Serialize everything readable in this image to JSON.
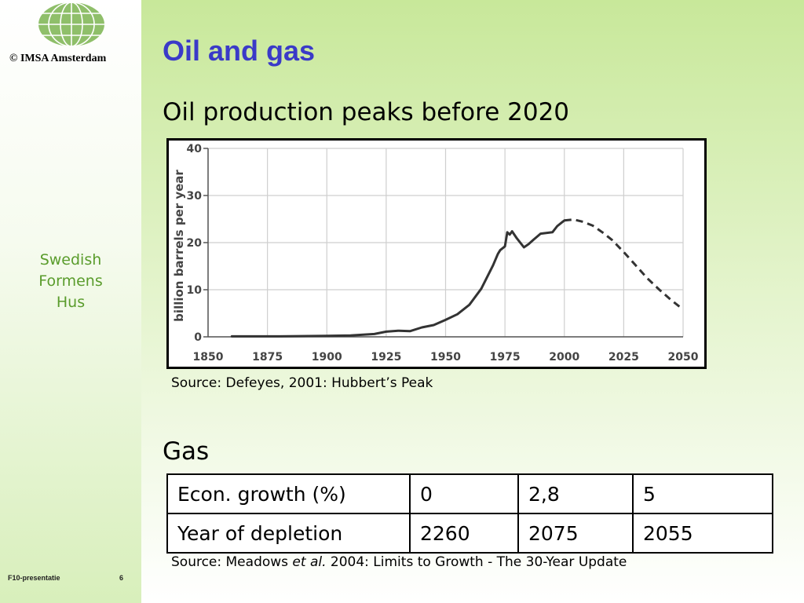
{
  "slide": {
    "title": "Oil and gas",
    "oil_heading": "Oil production peaks before 2020",
    "oil_source": "Source: Defeyes, 2001: Hubbert’s Peak",
    "gas_heading": "Gas",
    "gas_source_prefix": "Source: Meadows ",
    "gas_source_italic": "et al.",
    "gas_source_suffix": " 2004: Limits to Growth - The 30-Year Update"
  },
  "sidebar": {
    "logo_text": "© IMSA Amsterdam",
    "logo_icon": "globe-icon",
    "label_lines": [
      "Swedish",
      "Formens",
      "Hus"
    ],
    "label_color": "#5a9c2c"
  },
  "footer": {
    "left": "F10-presentatie",
    "page": "6"
  },
  "gas_table": {
    "rows": [
      [
        "Econ. growth (%)",
        "0",
        "2,8",
        "5"
      ],
      [
        "Year of depletion",
        "2260",
        "2075",
        "2055"
      ]
    ]
  },
  "colors": {
    "title": "#3a3ac8",
    "background_top": "#c8e89a"
  },
  "chart_data": {
    "type": "line",
    "ylabel": "billion barrels per year",
    "xlim": [
      1850,
      2050
    ],
    "ylim": [
      0,
      40
    ],
    "x_ticks": [
      1850,
      1875,
      1900,
      1925,
      1950,
      1975,
      2000,
      2025,
      2050
    ],
    "y_ticks": [
      0,
      10,
      20,
      30,
      40
    ],
    "grid": true,
    "series": [
      {
        "style": "solid",
        "x": [
          1860,
          1880,
          1900,
          1910,
          1920,
          1925,
          1930,
          1935,
          1940,
          1945,
          1950,
          1955,
          1960,
          1965,
          1970,
          1972,
          1973,
          1975,
          1976,
          1977,
          1978,
          1980,
          1983,
          1985,
          1987,
          1990,
          1995,
          1997,
          1999,
          2000
        ],
        "y": [
          0.1,
          0.1,
          0.2,
          0.3,
          0.6,
          1.1,
          1.3,
          1.2,
          2.0,
          2.5,
          3.6,
          4.8,
          6.8,
          10.2,
          15.2,
          17.6,
          18.4,
          19.2,
          22.2,
          21.7,
          22.4,
          20.9,
          19.0,
          19.7,
          20.6,
          21.9,
          22.2,
          23.5,
          24.3,
          24.7
        ]
      },
      {
        "style": "dashed",
        "x": [
          2000,
          2004,
          2008,
          2012,
          2016,
          2020,
          2025,
          2030,
          2035,
          2040,
          2045,
          2050
        ],
        "y": [
          24.7,
          24.9,
          24.4,
          23.6,
          22.2,
          20.6,
          18.0,
          15.2,
          12.4,
          10.0,
          7.8,
          5.8
        ]
      }
    ]
  }
}
